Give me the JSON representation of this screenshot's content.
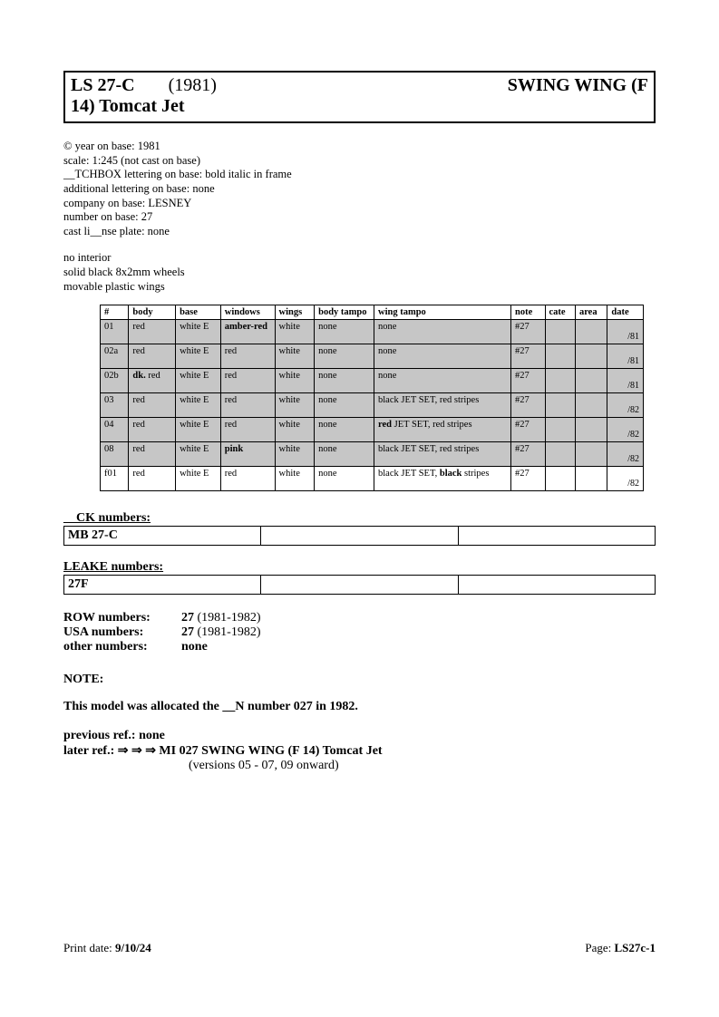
{
  "header": {
    "code": "LS 27-C",
    "year": "(1981)",
    "name_right": "SWING WING (F",
    "name_line2": "14) Tomcat Jet"
  },
  "meta": [
    "© year on base: 1981",
    "scale: 1:245 (not cast on base)",
    "__TCHBOX lettering on base: bold italic in frame",
    "additional lettering on base: none",
    "company on base: LESNEY",
    "number on base: 27",
    "cast li__nse plate: none"
  ],
  "meta2": [
    "no interior",
    "solid black 8x2mm wheels",
    "movable plastic wings"
  ],
  "columns": [
    "#",
    "body",
    "base",
    "windows",
    "wings",
    "body tampo",
    "wing tampo",
    "note",
    "cate",
    "area",
    "date"
  ],
  "rows": [
    {
      "shaded": true,
      "cells": [
        "01",
        "red",
        "white E",
        "<b>amber-red</b>",
        "white",
        "none",
        "none",
        "#27",
        "",
        "",
        "/81"
      ]
    },
    {
      "shaded": true,
      "cells": [
        "02a",
        "red",
        "white E",
        "red",
        "white",
        "none",
        "none",
        "#27",
        "",
        "",
        "/81"
      ]
    },
    {
      "shaded": true,
      "cells": [
        "02b",
        "<b>dk.</b> red",
        "white E",
        "red",
        "white",
        "none",
        "none",
        "#27",
        "",
        "",
        "/81"
      ]
    },
    {
      "shaded": true,
      "cells": [
        "03",
        "red",
        "white E",
        "red",
        "white",
        "none",
        "black JET SET, red stripes",
        "#27",
        "",
        "",
        "/82"
      ]
    },
    {
      "shaded": true,
      "cells": [
        "04",
        "red",
        "white E",
        "red",
        "white",
        "none",
        "<b>red</b> JET SET, red stripes",
        "#27",
        "",
        "",
        "/82"
      ]
    },
    {
      "shaded": true,
      "cells": [
        "08",
        "red",
        "white E",
        "<b>pink</b>",
        "white",
        "none",
        "black JET SET, red stripes",
        "#27",
        "",
        "",
        "/82"
      ]
    },
    {
      "shaded": false,
      "cells": [
        "f01",
        "red",
        "white E",
        "red",
        "white",
        "none",
        "black JET SET, <b>black</b> stripes",
        "#27",
        "",
        "",
        "/82"
      ]
    }
  ],
  "ck": {
    "label": "__CK numbers:",
    "val": "MB 27-C"
  },
  "leake": {
    "label": "LEAKE numbers:",
    "val": "27F"
  },
  "numbers": [
    {
      "label": "ROW numbers:",
      "bold": "27",
      "rest": " (1981-1982)"
    },
    {
      "label": "USA numbers:",
      "bold": "27",
      "rest": " (1981-1982)"
    },
    {
      "label": "other numbers:",
      "bold": "none",
      "rest": ""
    }
  ],
  "note_label": "NOTE:",
  "note_text": "This model was allocated the __N number 027 in 1982.",
  "prev_ref": "previous ref.: none",
  "later_ref_prefix": "later ref.: ",
  "later_ref_arrows": "⇒ ⇒ ⇒   MI 027   SWING WING (F 14) Tomcat Jet",
  "later_ref_sub": "(versions 05 - 07, 09 onward)",
  "footer": {
    "left_label": "Print date: ",
    "date": "9/10/24",
    "right_label": "Page: ",
    "page": "LS27c-1"
  }
}
